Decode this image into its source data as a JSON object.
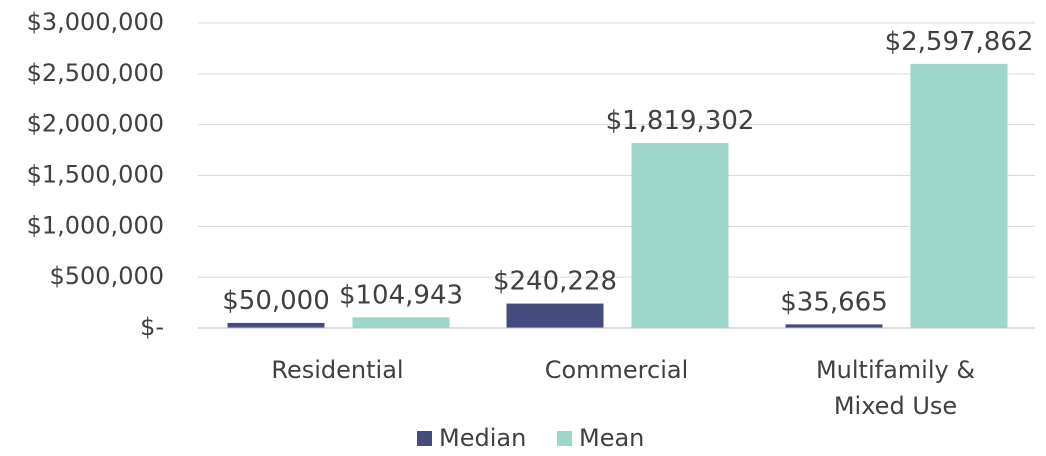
{
  "chart_data": {
    "type": "bar",
    "categories": [
      [
        "Residential"
      ],
      [
        "Commercial"
      ],
      [
        "Multifamily &",
        "Mixed Use"
      ]
    ],
    "series": [
      {
        "name": "Median",
        "color": "#454b7e",
        "values": [
          50000,
          240228,
          35665
        ],
        "labels": [
          "$50,000",
          "$240,228",
          "$35,665"
        ]
      },
      {
        "name": "Mean",
        "color": "#9dd6cb",
        "values": [
          104943,
          1819302,
          2597862
        ],
        "labels": [
          "$104,943",
          "$1,819,302",
          "$2,597,862"
        ]
      }
    ],
    "ylim": [
      0,
      3000000
    ],
    "yticks": [
      {
        "value": 0,
        "label": "$-"
      },
      {
        "value": 500000,
        "label": "$500,000"
      },
      {
        "value": 1000000,
        "label": "$1,000,000"
      },
      {
        "value": 1500000,
        "label": "$1,500,000"
      },
      {
        "value": 2000000,
        "label": "$2,000,000"
      },
      {
        "value": 2500000,
        "label": "$2,500,000"
      },
      {
        "value": 3000000,
        "label": "$3,000,000"
      }
    ],
    "grid": true,
    "legend_position": "bottom",
    "title": "",
    "xlabel": "",
    "ylabel": ""
  }
}
